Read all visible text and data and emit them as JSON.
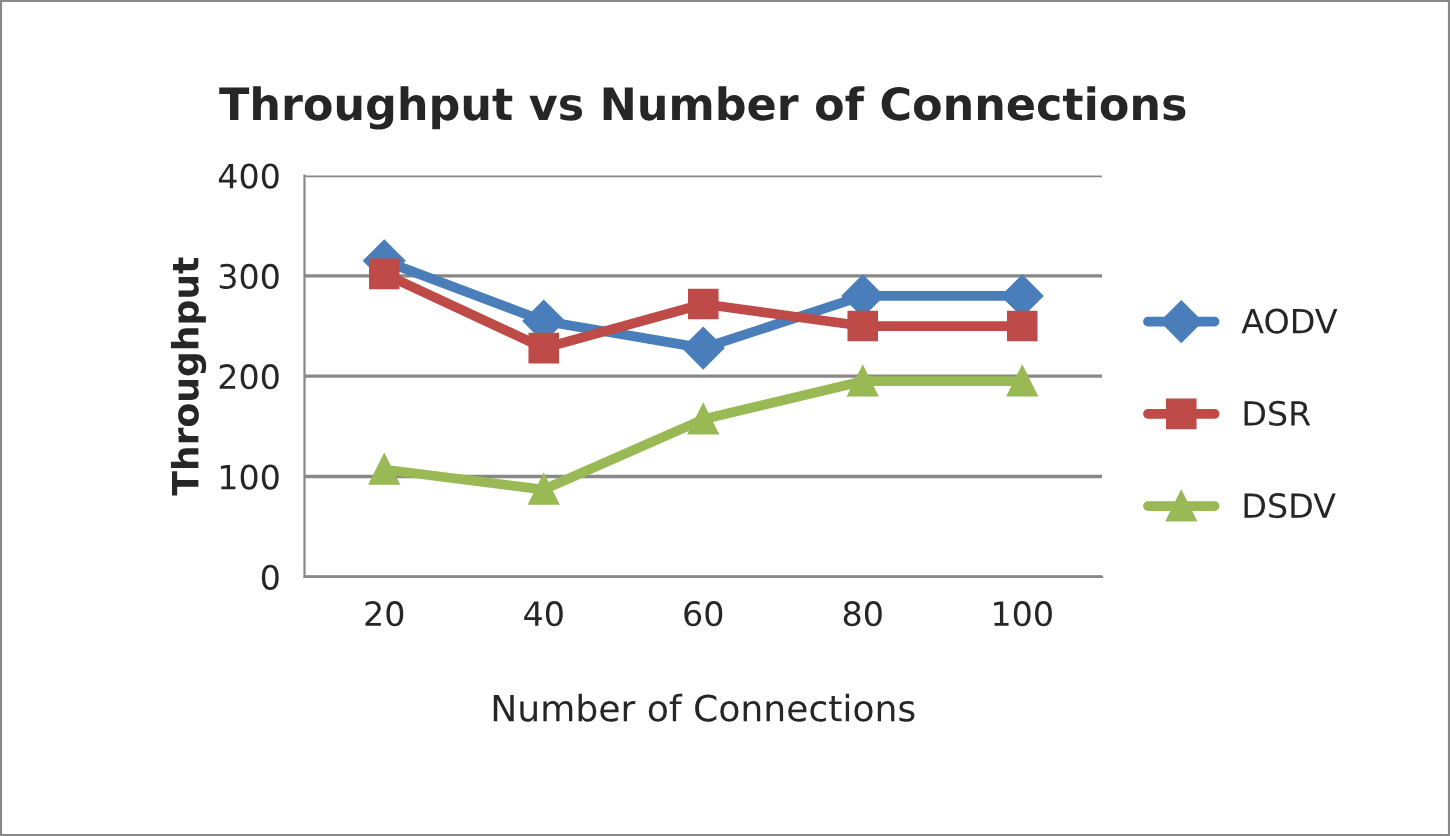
{
  "chart_data": {
    "type": "line",
    "title": "Throughput vs Number of Connections",
    "xlabel": "Number of Connections",
    "ylabel": "Throughput",
    "categories": [
      "20",
      "40",
      "60",
      "80",
      "100"
    ],
    "series": [
      {
        "name": "AODV",
        "color": "#4a7ebb",
        "marker": "diamond",
        "values": [
          315,
          255,
          228,
          280,
          280
        ]
      },
      {
        "name": "DSR",
        "color": "#be4b48",
        "marker": "square",
        "values": [
          302,
          228,
          272,
          250,
          250
        ]
      },
      {
        "name": "DSDV",
        "color": "#98b954",
        "marker": "triangle",
        "values": [
          107,
          87,
          157,
          195,
          195
        ]
      }
    ],
    "ylim": [
      0,
      400
    ],
    "yticks": [
      0,
      100,
      200,
      300,
      400
    ],
    "grid": "y",
    "legend": "right"
  }
}
